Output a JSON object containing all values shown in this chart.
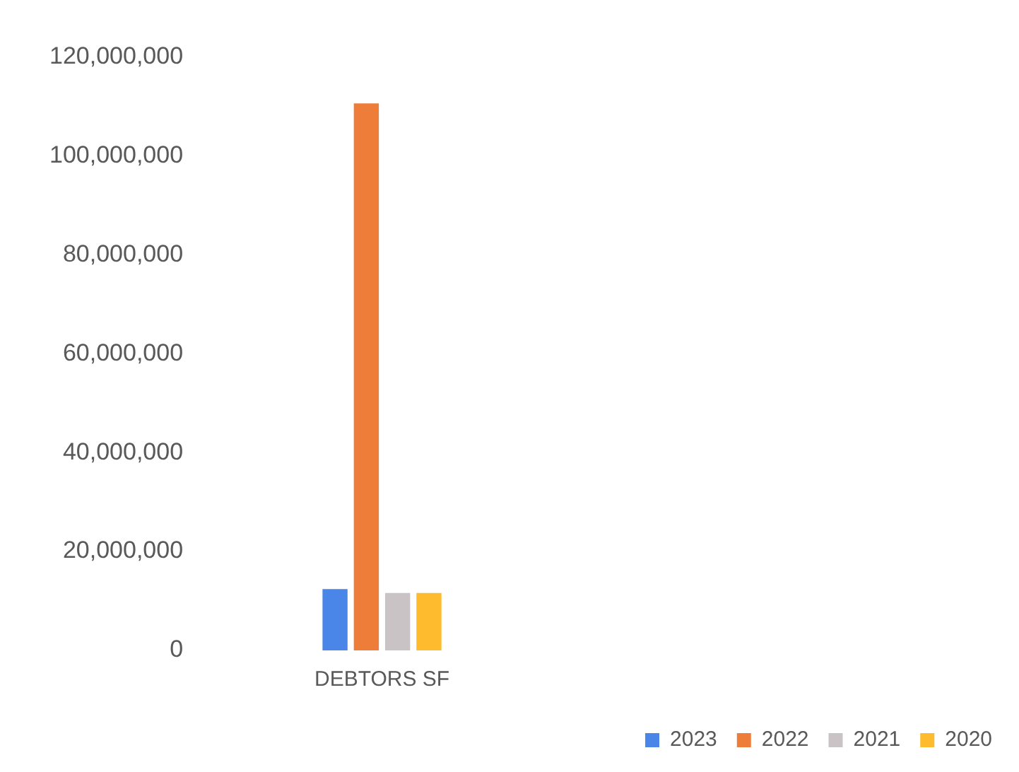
{
  "chart_data": {
    "type": "bar",
    "categories": [
      "DEBTORS SF"
    ],
    "series": [
      {
        "name": "2023",
        "color": "#4a86e8",
        "values": [
          12400000
        ]
      },
      {
        "name": "2022",
        "color": "#ee7d3a",
        "values": [
          110600000
        ]
      },
      {
        "name": "2021",
        "color": "#c9c3c6",
        "values": [
          11600000
        ]
      },
      {
        "name": "2020",
        "color": "#fdbb2d",
        "values": [
          11600000
        ]
      }
    ],
    "ylim": [
      0,
      120000000
    ],
    "yticks": [
      0,
      {
        "value": 20000000,
        "label": "20,000,000"
      },
      {
        "value": 40000000,
        "label": "40,000,000"
      },
      {
        "value": 60000000,
        "label": "60,000,000"
      },
      {
        "value": 80000000,
        "label": "80,000,000"
      },
      {
        "value": 100000000,
        "label": "100,000,000"
      },
      {
        "value": 120000000,
        "label": "120,000,000"
      }
    ],
    "grid": false,
    "legend": "bottom right"
  }
}
